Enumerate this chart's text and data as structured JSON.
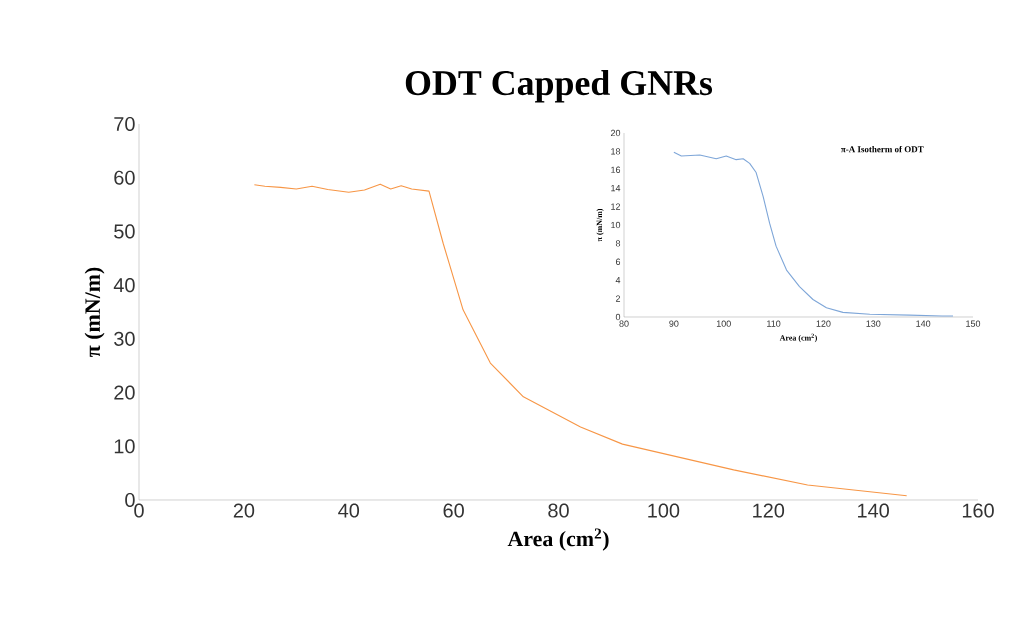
{
  "chart_data": [
    {
      "type": "line",
      "title": "ODT Capped GNRs",
      "xlabel": "Area (cm$^{2}$)",
      "ylabel": "π (mN/m)",
      "xlim": [
        0,
        160
      ],
      "ylim": [
        0,
        70
      ],
      "xticks": [
        0,
        20,
        40,
        60,
        80,
        100,
        120,
        140,
        160
      ],
      "yticks": [
        0,
        10,
        20,
        30,
        40,
        50,
        60,
        70
      ],
      "series": [
        {
          "color": "#f79646",
          "x": [
            22,
            24,
            27,
            30,
            33,
            36,
            40,
            43,
            46,
            48,
            50,
            52,
            55.3,
            58,
            61.8,
            67,
            73.3,
            84.2,
            92.2,
            113.4,
            127.5,
            146.4
          ],
          "values": [
            58.7,
            58.4,
            58.2,
            57.9,
            58.4,
            57.8,
            57.3,
            57.7,
            58.8,
            57.9,
            58.5,
            57.9,
            57.5,
            47.8,
            35.4,
            25.5,
            19.2,
            13.6,
            10.4,
            5.6,
            2.8,
            0.8
          ]
        }
      ]
    },
    {
      "type": "line",
      "title": "π-A Isotherm of ODT",
      "xlabel": "Area (cm$^{2}$)",
      "ylabel": "π (mN/m)",
      "xlim": [
        80,
        150
      ],
      "ylim": [
        0,
        20
      ],
      "xticks": [
        80,
        90,
        100,
        110,
        120,
        130,
        140,
        150
      ],
      "yticks": [
        0,
        2,
        4,
        6,
        8,
        10,
        12,
        14,
        16,
        18,
        20
      ],
      "series": [
        {
          "color": "#7ea6d8",
          "x": [
            90,
            91.5,
            95.2,
            98.5,
            100.5,
            102.5,
            103.9,
            105.2,
            106.5,
            107.9,
            109.2,
            110.5,
            112.6,
            115.2,
            117.9,
            120.6,
            123.9,
            129.3,
            137.3,
            143.8,
            146
          ],
          "values": [
            17.9,
            17.5,
            17.6,
            17.2,
            17.5,
            17.1,
            17.2,
            16.7,
            15.7,
            13.1,
            10.2,
            7.7,
            5.1,
            3.3,
            1.9,
            1.0,
            0.5,
            0.3,
            0.2,
            0.1,
            0.1
          ]
        }
      ]
    }
  ]
}
